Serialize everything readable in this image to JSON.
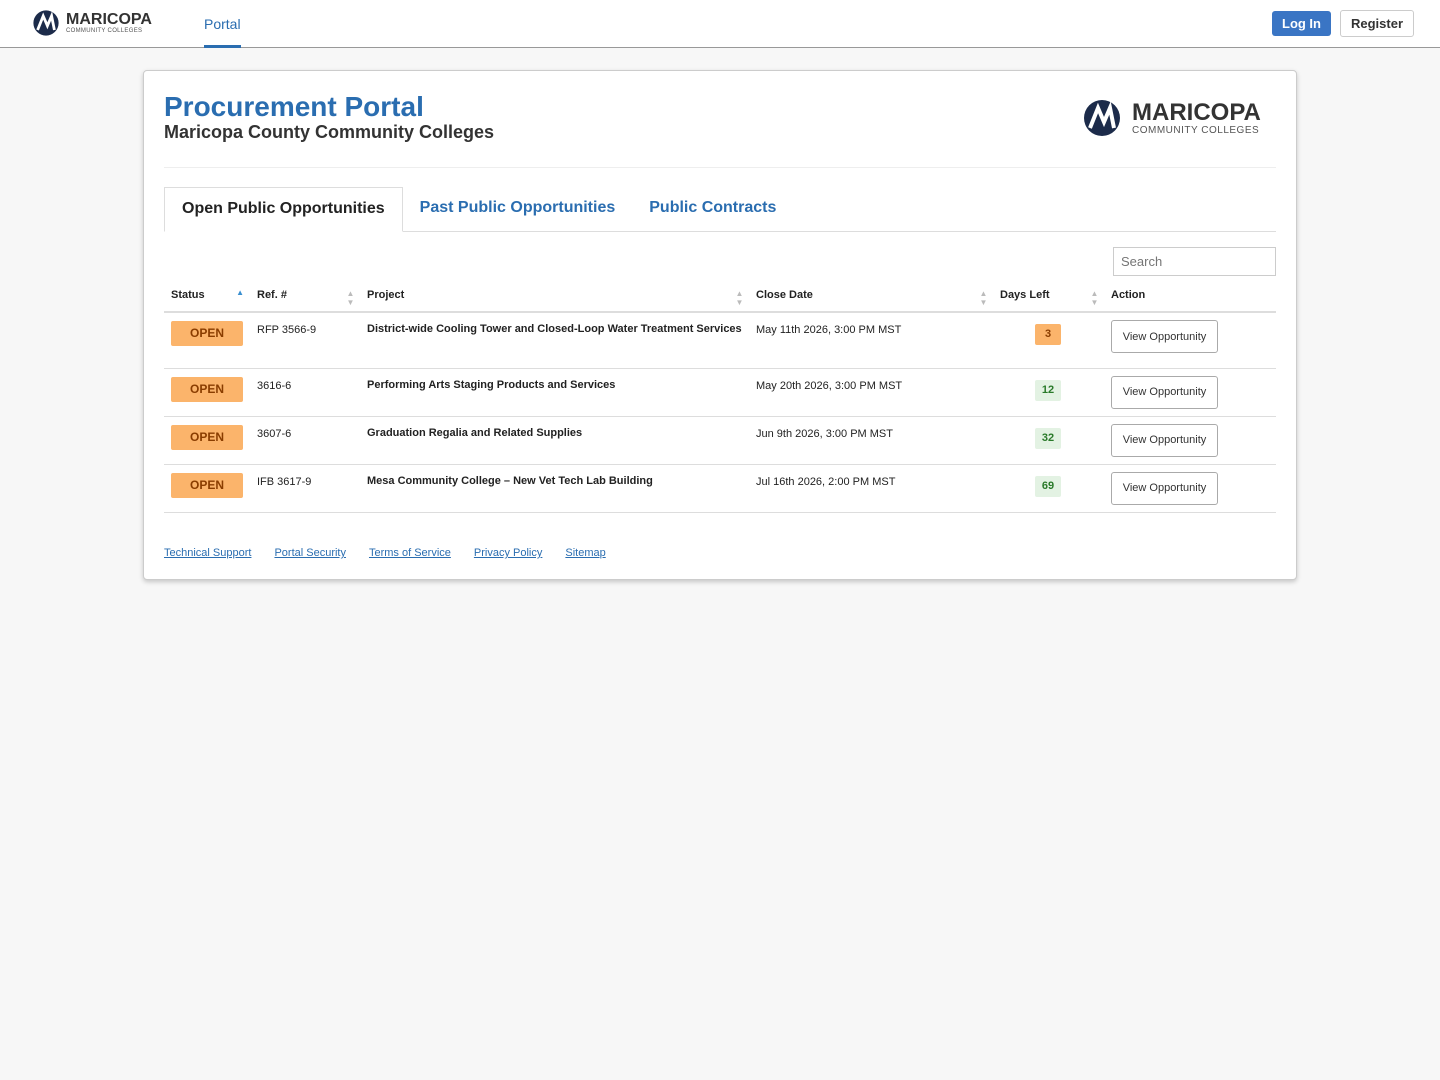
{
  "nav": {
    "brand": "MARICOPA",
    "brand_sub": "COMMUNITY COLLEGES",
    "links": [
      "Portal"
    ],
    "login": "Log In",
    "register": "Register"
  },
  "header": {
    "title": "Procurement Portal",
    "subtitle": "Maricopa County Community Colleges",
    "logo_name": "MARICOPA",
    "logo_sub": "COMMUNITY COLLEGES"
  },
  "tabs": [
    "Open Public Opportunities",
    "Past Public Opportunities",
    "Public Contracts"
  ],
  "search_placeholder": "Search",
  "table": {
    "columns": [
      "Status",
      "Ref. #",
      "Project",
      "Close Date",
      "Days Left",
      "Action"
    ],
    "rows": [
      [
        "OPEN",
        "RFP 3566-9",
        "District-wide Cooling Tower and Closed-Loop Water Treatment Services",
        "May 11th 2026, 3:00 PM MST",
        3,
        "View Opportunity"
      ],
      [
        "OPEN",
        "3616-6",
        "Performing Arts Staging Products and Services",
        "May 20th 2026, 3:00 PM MST",
        12,
        "View Opportunity"
      ],
      [
        "OPEN",
        "3607-6",
        "Graduation Regalia and Related Supplies",
        "Jun 9th 2026, 3:00 PM MST",
        32,
        "View Opportunity"
      ],
      [
        "OPEN",
        "IFB 3617-9",
        "Mesa Community College – New Vet Tech Lab Building",
        "Jul 16th 2026, 2:00 PM MST",
        69,
        "View Opportunity"
      ]
    ]
  },
  "footer_links": [
    "Technical Support",
    "Portal Security",
    "Terms of Service",
    "Privacy Policy",
    "Sitemap"
  ]
}
